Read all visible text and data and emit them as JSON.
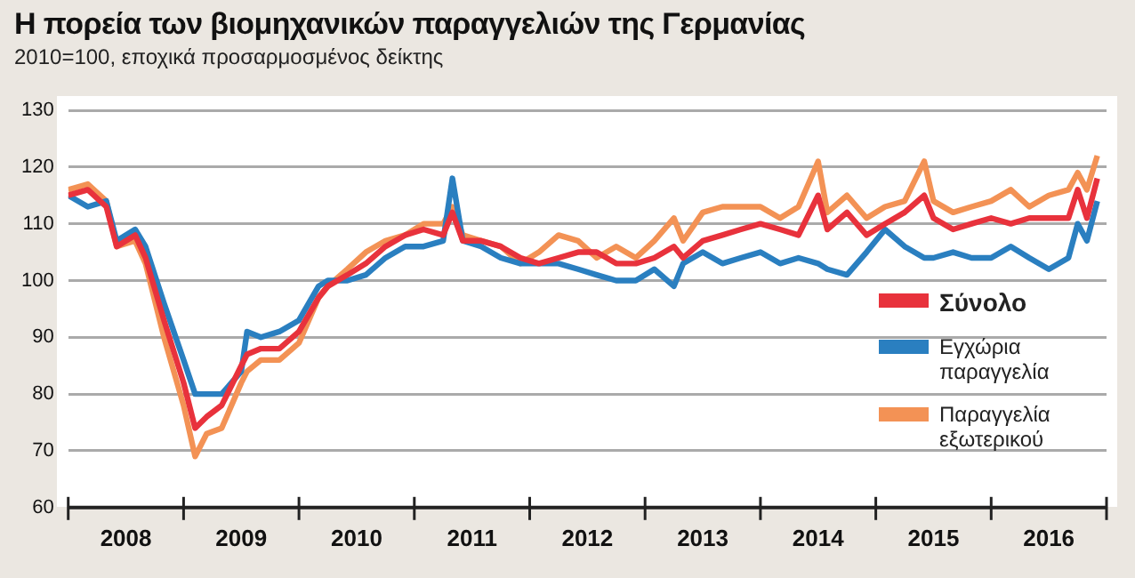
{
  "chart_data": {
    "type": "line",
    "title": "Η πορεία των βιομηχανικών παραγγελιών της Γερμανίας",
    "subtitle": "2010=100, εποχικά προσαρμοσμένος δείκτης",
    "x": [
      2008.0,
      2008.17,
      2008.33,
      2008.42,
      2008.58,
      2008.67,
      2008.83,
      2009.0,
      2009.1,
      2009.2,
      2009.33,
      2009.5,
      2009.55,
      2009.67,
      2009.83,
      2010.0,
      2010.17,
      2010.25,
      2010.42,
      2010.58,
      2010.75,
      2010.92,
      2011.08,
      2011.25,
      2011.33,
      2011.42,
      2011.58,
      2011.75,
      2011.92,
      2012.08,
      2012.25,
      2012.42,
      2012.58,
      2012.75,
      2012.92,
      2013.08,
      2013.25,
      2013.33,
      2013.5,
      2013.67,
      2013.83,
      2014.0,
      2014.17,
      2014.33,
      2014.5,
      2014.58,
      2014.75,
      2014.92,
      2015.08,
      2015.25,
      2015.42,
      2015.5,
      2015.67,
      2015.83,
      2016.0,
      2016.17,
      2016.33,
      2016.5,
      2016.67,
      2016.75,
      2016.83,
      2016.92
    ],
    "series": [
      {
        "name": "Σύνολο",
        "color": "#e8323c",
        "values": [
          115,
          116,
          113,
          106,
          108,
          104,
          93,
          82,
          74,
          76,
          78,
          85,
          87,
          88,
          88,
          91,
          97,
          99,
          101,
          103,
          106,
          108,
          109,
          108,
          112,
          107,
          107,
          106,
          104,
          103,
          104,
          105,
          105,
          103,
          103,
          104,
          106,
          104,
          107,
          108,
          109,
          110,
          109,
          108,
          115,
          109,
          112,
          108,
          110,
          112,
          115,
          111,
          109,
          110,
          111,
          110,
          111,
          111,
          111,
          116,
          111,
          118
        ]
      },
      {
        "name": "Εγχώρια παραγγελία",
        "color": "#2a7fc0",
        "values": [
          115,
          113,
          114,
          107,
          109,
          106,
          96,
          86,
          80,
          80,
          80,
          84,
          91,
          90,
          91,
          93,
          99,
          100,
          100,
          101,
          104,
          106,
          106,
          107,
          118,
          107,
          106,
          104,
          103,
          103,
          103,
          102,
          101,
          100,
          100,
          102,
          99,
          103,
          105,
          103,
          104,
          105,
          103,
          104,
          103,
          102,
          101,
          105,
          109,
          106,
          104,
          104,
          105,
          104,
          104,
          106,
          104,
          102,
          104,
          110,
          107,
          114
        ]
      },
      {
        "name": "Παραγγελία εξωτερικού",
        "color": "#f39255",
        "values": [
          116,
          117,
          114,
          106,
          107,
          103,
          90,
          78,
          69,
          73,
          74,
          82,
          84,
          86,
          86,
          89,
          97,
          99,
          102,
          105,
          107,
          108,
          110,
          110,
          113,
          108,
          107,
          106,
          103,
          105,
          108,
          107,
          104,
          106,
          104,
          107,
          111,
          107,
          112,
          113,
          113,
          113,
          111,
          113,
          121,
          112,
          115,
          111,
          113,
          114,
          121,
          114,
          112,
          113,
          114,
          116,
          113,
          115,
          116,
          119,
          116,
          122
        ]
      }
    ],
    "xlim": [
      2008,
      2017
    ],
    "xticks": [
      {
        "value": 2008,
        "label": null
      },
      {
        "value": 2008.5,
        "label": "2008"
      },
      {
        "value": 2009,
        "label": null
      },
      {
        "value": 2009.5,
        "label": "2009"
      },
      {
        "value": 2010,
        "label": null
      },
      {
        "value": 2010.5,
        "label": "2010"
      },
      {
        "value": 2011,
        "label": null
      },
      {
        "value": 2011.5,
        "label": "2011"
      },
      {
        "value": 2012,
        "label": null
      },
      {
        "value": 2012.5,
        "label": "2012"
      },
      {
        "value": 2013,
        "label": null
      },
      {
        "value": 2013.5,
        "label": "2013"
      },
      {
        "value": 2014,
        "label": null
      },
      {
        "value": 2014.5,
        "label": "2014"
      },
      {
        "value": 2015,
        "label": null
      },
      {
        "value": 2015.5,
        "label": "2015"
      },
      {
        "value": 2016,
        "label": null
      },
      {
        "value": 2016.5,
        "label": "2016"
      },
      {
        "value": 2017,
        "label": null
      }
    ],
    "ylim": [
      60,
      130
    ],
    "yticks": [
      60,
      70,
      80,
      90,
      100,
      110,
      120,
      130
    ],
    "grid": "y",
    "legend": "right",
    "marker": "none",
    "line_style": "solid"
  }
}
